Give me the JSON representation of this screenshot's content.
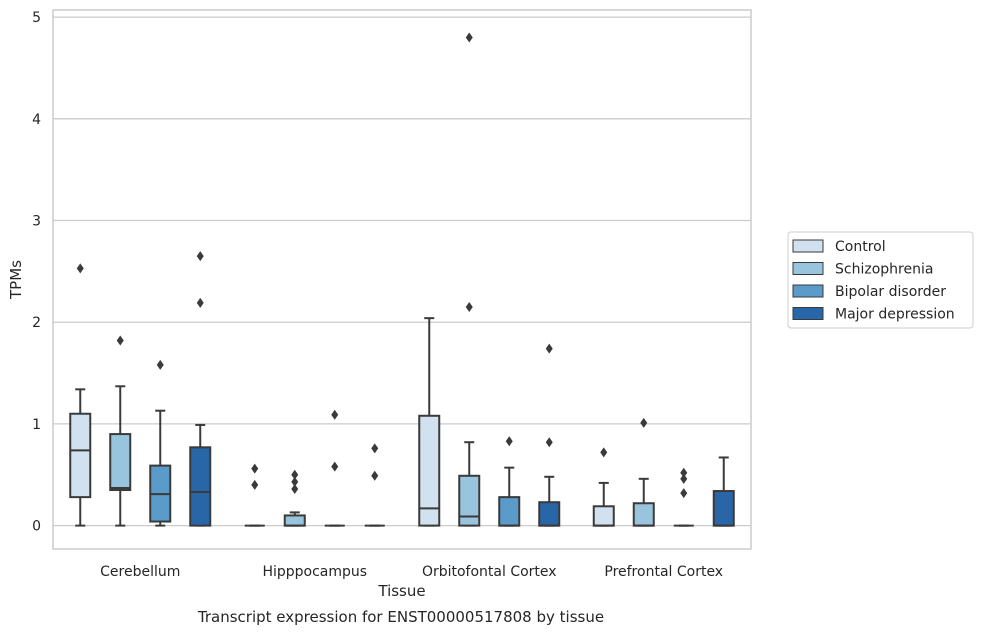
{
  "chart_data": {
    "type": "box",
    "title": "",
    "caption": "Transcript expression for ENST00000517808 by tissue",
    "xlabel": "Tissue",
    "ylabel": "TPMs",
    "ylim": [
      -0.23,
      5.07
    ],
    "yticks": [
      0,
      1,
      2,
      3,
      4,
      5
    ],
    "grid": "horizontal",
    "legend_position": "right",
    "categories": [
      "Cerebellum",
      "Hipppocampus",
      "Orbitofontal Cortex",
      "Prefrontal Cortex"
    ],
    "series": [
      {
        "name": "Control",
        "color": "#d1e1ef",
        "boxes": [
          {
            "whisker_low": 0,
            "q1": 0.28,
            "median": 0.74,
            "q3": 1.1,
            "whisker_high": 1.34,
            "outliers": [
              2.53
            ]
          },
          {
            "whisker_low": 0,
            "q1": 0,
            "median": 0,
            "q3": 0,
            "whisker_high": 0,
            "outliers": [
              0.56,
              0.4
            ]
          },
          {
            "whisker_low": 0,
            "q1": 0,
            "median": 0.17,
            "q3": 1.08,
            "whisker_high": 2.04,
            "outliers": []
          },
          {
            "whisker_low": 0,
            "q1": 0,
            "median": 0,
            "q3": 0.19,
            "whisker_high": 0.42,
            "outliers": [
              0.72
            ]
          }
        ]
      },
      {
        "name": "Schizophrenia",
        "color": "#99c4de",
        "boxes": [
          {
            "whisker_low": 0,
            "q1": 0.35,
            "median": 0.37,
            "q3": 0.9,
            "whisker_high": 1.37,
            "outliers": [
              1.82
            ]
          },
          {
            "whisker_low": 0,
            "q1": 0,
            "median": 0,
            "q3": 0.1,
            "whisker_high": 0.13,
            "outliers": [
              0.5,
              0.43,
              0.36
            ]
          },
          {
            "whisker_low": 0,
            "q1": 0,
            "median": 0.09,
            "q3": 0.49,
            "whisker_high": 0.82,
            "outliers": [
              2.15,
              4.8
            ]
          },
          {
            "whisker_low": 0,
            "q1": 0,
            "median": 0,
            "q3": 0.22,
            "whisker_high": 0.46,
            "outliers": [
              1.01
            ]
          }
        ]
      },
      {
        "name": "Bipolar disorder",
        "color": "#5a9bc9",
        "boxes": [
          {
            "whisker_low": 0,
            "q1": 0.04,
            "median": 0.31,
            "q3": 0.59,
            "whisker_high": 1.13,
            "outliers": [
              1.58
            ]
          },
          {
            "whisker_low": 0,
            "q1": 0,
            "median": 0,
            "q3": 0,
            "whisker_high": 0,
            "outliers": [
              1.09,
              0.58
            ]
          },
          {
            "whisker_low": 0,
            "q1": 0,
            "median": 0,
            "q3": 0.28,
            "whisker_high": 0.57,
            "outliers": [
              0.83
            ]
          },
          {
            "whisker_low": 0,
            "q1": 0,
            "median": 0,
            "q3": 0,
            "whisker_high": 0,
            "outliers": [
              0.52,
              0.46,
              0.32
            ]
          }
        ]
      },
      {
        "name": "Major depression",
        "color": "#2866a8",
        "boxes": [
          {
            "whisker_low": 0,
            "q1": 0,
            "median": 0.33,
            "q3": 0.77,
            "whisker_high": 0.99,
            "outliers": [
              2.19,
              2.65
            ]
          },
          {
            "whisker_low": 0,
            "q1": 0,
            "median": 0,
            "q3": 0,
            "whisker_high": 0,
            "outliers": [
              0.76,
              0.49
            ]
          },
          {
            "whisker_low": 0,
            "q1": 0,
            "median": 0,
            "q3": 0.23,
            "whisker_high": 0.48,
            "outliers": [
              0.82,
              1.74
            ]
          },
          {
            "whisker_low": 0,
            "q1": 0,
            "median": 0,
            "q3": 0.34,
            "whisker_high": 0.67,
            "outliers": []
          }
        ]
      }
    ]
  }
}
